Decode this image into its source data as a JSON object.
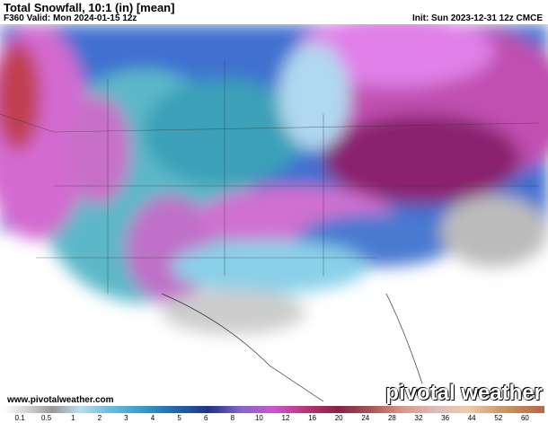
{
  "header": {
    "title": "Total Snowfall, 10:1 (in) [mean]",
    "valid": "F360 Valid: Mon 2024-01-15 12z",
    "init": "Init: Sun 2023-12-31 12z CMCE"
  },
  "footer": {
    "website": "www.pivotalweather.com",
    "brand": "pivotal weather"
  },
  "colorbar": {
    "labels": [
      0.1,
      0.5,
      1,
      2,
      3,
      4,
      5,
      6,
      8,
      10,
      12,
      16,
      20,
      24,
      28,
      32,
      36,
      44,
      52,
      60
    ]
  }
}
